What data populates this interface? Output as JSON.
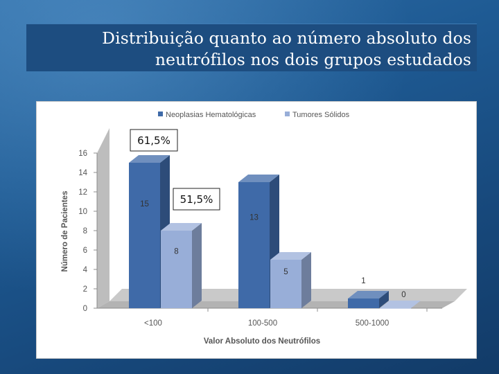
{
  "slide": {
    "title_line1": "Distribuição quanto ao número absoluto dos",
    "title_line2": "neutrófilos nos dois grupos estudados"
  },
  "chart_data": {
    "type": "bar",
    "categories": [
      "<100",
      "100-500",
      "500-1000"
    ],
    "series": [
      {
        "name": "Neoplasias Hematológicas",
        "values": [
          15,
          13,
          1
        ],
        "color": "#3f6aa8"
      },
      {
        "name": "Tumores Sólidos",
        "values": [
          8,
          5,
          0
        ],
        "color": "#98aed8"
      }
    ],
    "xlabel": "Valor Absoluto dos Neutrófilos",
    "ylabel": "Número de Pacientes",
    "ylim": [
      0,
      16
    ],
    "yticks": [
      "0",
      "2",
      "4",
      "6",
      "8",
      "10",
      "12",
      "14",
      "16"
    ],
    "data_labels": [
      [
        "15",
        "13",
        "1"
      ],
      [
        "8",
        "5",
        "0"
      ]
    ],
    "legend_position": "top",
    "grid": false,
    "annotations": [
      "61,5%",
      "51,5%"
    ]
  }
}
